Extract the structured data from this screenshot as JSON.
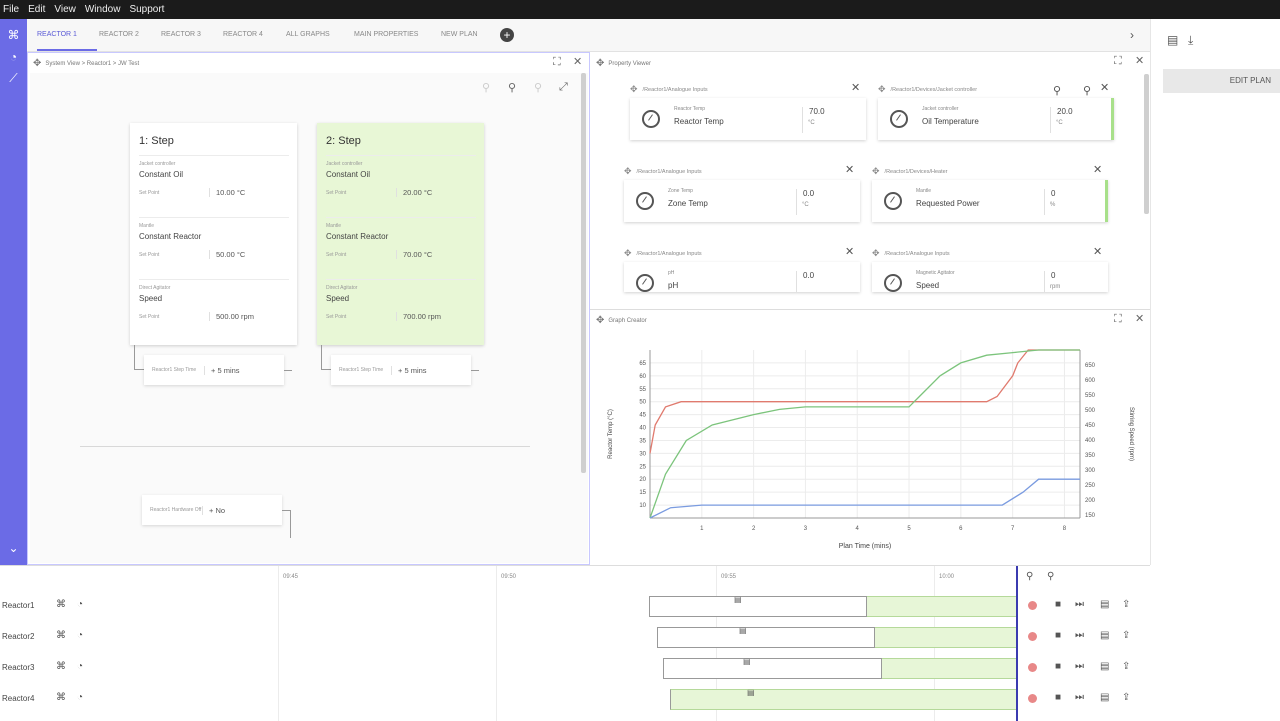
{
  "menu": [
    "File",
    "Edit",
    "View",
    "Window",
    "Support"
  ],
  "tabs": [
    "REACTOR 1",
    "REACTOR 2",
    "REACTOR 3",
    "REACTOR 4",
    "ALL GRAPHS",
    "MAIN PROPERTIES",
    "NEW PLAN"
  ],
  "right_panel": {
    "edit_plan": "EDIT PLAN"
  },
  "system_view": {
    "breadcrumb": "System View > Reactor1 > JW Test",
    "steps": [
      {
        "title": "1: Step",
        "sections": [
          {
            "device": "Jacket controller",
            "mode": "Constant Oil",
            "sp_label": "Set Point",
            "sp": "10.00 °C"
          },
          {
            "device": "Mantle",
            "mode": "Constant Reactor",
            "sp_label": "Set Point",
            "sp": "50.00 °C"
          },
          {
            "device": "Direct Agitator",
            "mode": "Speed",
            "sp_label": "Set Point",
            "sp": "500.00 rpm"
          }
        ],
        "step_time_label": "Reactor1 Step Time",
        "step_time": "+ 5 mins"
      },
      {
        "title": "2: Step",
        "sections": [
          {
            "device": "Jacket controller",
            "mode": "Constant Oil",
            "sp_label": "Set Point",
            "sp": "20.00 °C"
          },
          {
            "device": "Mantle",
            "mode": "Constant Reactor",
            "sp_label": "Set Point",
            "sp": "70.00 °C"
          },
          {
            "device": "Direct Agitator",
            "mode": "Speed",
            "sp_label": "Set Point",
            "sp": "700.00 rpm"
          }
        ],
        "step_time_label": "Reactor1 Step Time",
        "step_time": "+ 5 mins"
      }
    ],
    "hardware": {
      "label": "Reactor1 Hardware Off",
      "value": "+ No"
    }
  },
  "property_viewer": {
    "title": "Property Viewer",
    "items": [
      {
        "path": "/Reactor1/Analogue Inputs",
        "small": "Reactor Temp",
        "big": "Reactor Temp",
        "value": "70.0",
        "unit": "°C"
      },
      {
        "path": "/Reactor1/Devices/Jacket controller",
        "small": "Jacket controller",
        "big": "Oil Temperature",
        "value": "20.0",
        "unit": "°C"
      },
      {
        "path": "/Reactor1/Analogue Inputs",
        "small": "Zone Temp",
        "big": "Zone Temp",
        "value": "0.0",
        "unit": "°C"
      },
      {
        "path": "/Reactor1/Devices/Heater",
        "small": "Mantle",
        "big": "Requested Power",
        "value": "0",
        "unit": "%"
      },
      {
        "path": "/Reactor1/Analogue Inputs",
        "small": "pH",
        "big": "pH",
        "value": "0.0",
        "unit": ""
      },
      {
        "path": "/Reactor1/Analogue Inputs",
        "small": "Magnetic Agitator",
        "big": "Speed",
        "value": "0",
        "unit": "rpm"
      }
    ]
  },
  "graph": {
    "title": "Graph Creator",
    "colors": {
      "red": "#e07a6e",
      "green": "#7cc47c",
      "blue": "#7a9be0"
    }
  },
  "chart_data": {
    "type": "line",
    "xlabel": "Plan Time (mins)",
    "ylabel": "Reactor Temp (°C)",
    "y2label": "Stirring Speed (rpm)",
    "xlim": [
      0,
      8.3
    ],
    "ylim": [
      5,
      70
    ],
    "y2lim": [
      140,
      700
    ],
    "x_ticks": [
      "1",
      "2",
      "3",
      "4",
      "5",
      "6",
      "7",
      "8"
    ],
    "y_ticks": [
      "10",
      "15",
      "20",
      "25",
      "30",
      "35",
      "40",
      "45",
      "50",
      "55",
      "60",
      "65"
    ],
    "y2_ticks": [
      "150",
      "200",
      "250",
      "300",
      "350",
      "400",
      "450",
      "500",
      "550",
      "600",
      "650"
    ],
    "series": [
      {
        "color": "red",
        "points": [
          [
            0,
            30
          ],
          [
            0.1,
            41
          ],
          [
            0.3,
            48
          ],
          [
            0.6,
            50
          ],
          [
            1,
            50
          ],
          [
            2,
            50
          ],
          [
            3,
            50
          ],
          [
            4,
            50
          ],
          [
            5,
            50
          ],
          [
            6,
            50
          ],
          [
            6.5,
            50
          ],
          [
            6.7,
            52
          ],
          [
            7,
            60
          ],
          [
            7.1,
            65
          ],
          [
            7.3,
            70
          ],
          [
            8.3,
            70
          ]
        ]
      },
      {
        "color": "green",
        "points": [
          [
            0,
            5
          ],
          [
            0.3,
            22
          ],
          [
            0.7,
            35
          ],
          [
            1.2,
            41
          ],
          [
            2,
            45
          ],
          [
            2.5,
            47
          ],
          [
            3,
            48
          ],
          [
            4,
            48
          ],
          [
            5,
            48
          ],
          [
            5.2,
            52
          ],
          [
            5.6,
            60
          ],
          [
            6,
            65
          ],
          [
            6.5,
            68
          ],
          [
            7,
            69
          ],
          [
            7.5,
            70
          ],
          [
            8.3,
            70
          ]
        ]
      },
      {
        "color": "blue",
        "points": [
          [
            0,
            5
          ],
          [
            0.4,
            9
          ],
          [
            1,
            10
          ],
          [
            2,
            10
          ],
          [
            3,
            10
          ],
          [
            4,
            10
          ],
          [
            5,
            10
          ],
          [
            6,
            10
          ],
          [
            6.8,
            10
          ],
          [
            7.2,
            15
          ],
          [
            7.5,
            20
          ],
          [
            8.3,
            20
          ]
        ]
      }
    ]
  },
  "timeline": {
    "times": [
      "09:45",
      "09:50",
      "09:55",
      "10:00"
    ],
    "rows": [
      "Reactor1",
      "Reactor2",
      "Reactor3",
      "Reactor4"
    ]
  }
}
